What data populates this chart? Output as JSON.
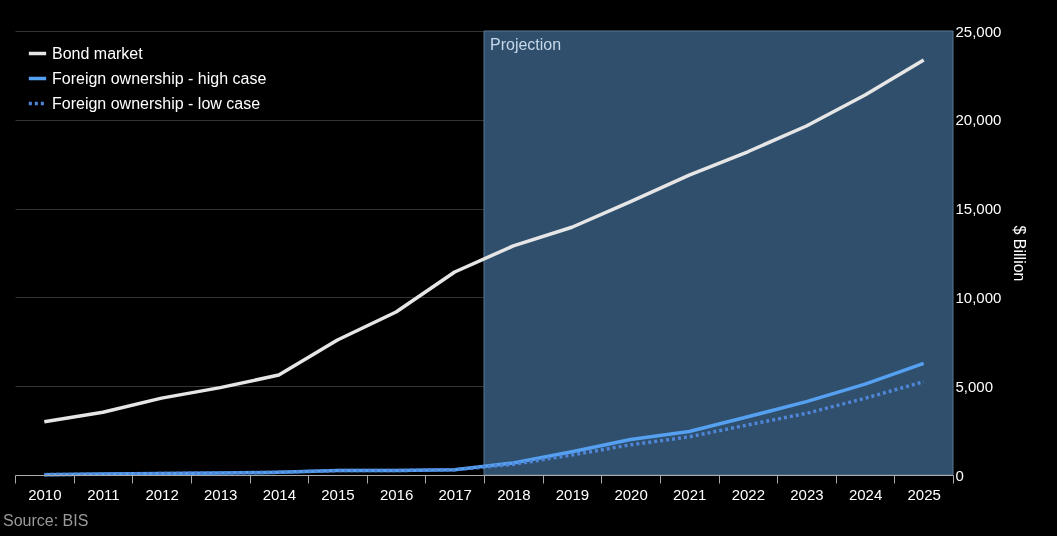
{
  "chart_data": {
    "type": "line",
    "categories": [
      "2010",
      "2011",
      "2012",
      "2013",
      "2014",
      "2015",
      "2016",
      "2017",
      "2018",
      "2019",
      "2020",
      "2021",
      "2022",
      "2023",
      "2024",
      "2025"
    ],
    "series": [
      {
        "name": "Bond market",
        "color": "#e6e6e6",
        "line_style": "solid",
        "values": [
          3000,
          3530,
          4330,
          4920,
          5630,
          7600,
          9180,
          11430,
          12900,
          13950,
          15390,
          16890,
          18200,
          19650,
          21400,
          23370
        ]
      },
      {
        "name": "Foreign ownership - high case",
        "color": "#55a0f0",
        "line_style": "solid",
        "values": [
          20,
          50,
          80,
          110,
          150,
          250,
          250,
          300,
          680,
          1310,
          2000,
          2450,
          3280,
          4130,
          5120,
          6290
        ]
      },
      {
        "name": "Foreign ownership - low case",
        "color": "#4f86d8",
        "line_style": "dotted",
        "values": [
          20,
          50,
          80,
          110,
          150,
          250,
          250,
          300,
          600,
          1130,
          1700,
          2150,
          2820,
          3470,
          4320,
          5250
        ]
      }
    ],
    "ylabel": "$ Billion",
    "ylim": [
      0,
      25000
    ],
    "yticks": [
      0,
      {
        "value": 5000,
        "label": "5,000"
      },
      {
        "value": 10000,
        "label": "10,000"
      },
      {
        "value": 15000,
        "label": "15,000"
      },
      {
        "value": 20000,
        "label": "20,000"
      },
      {
        "value": 25000,
        "label": "25,000"
      }
    ],
    "grid": "y",
    "legend": "top left",
    "bands": [
      {
        "axis": "x",
        "from": "2018",
        "to": "2025",
        "label": "Projection",
        "color": "#2f4f6c"
      }
    ],
    "annotations": [
      "Source: BIS"
    ]
  }
}
